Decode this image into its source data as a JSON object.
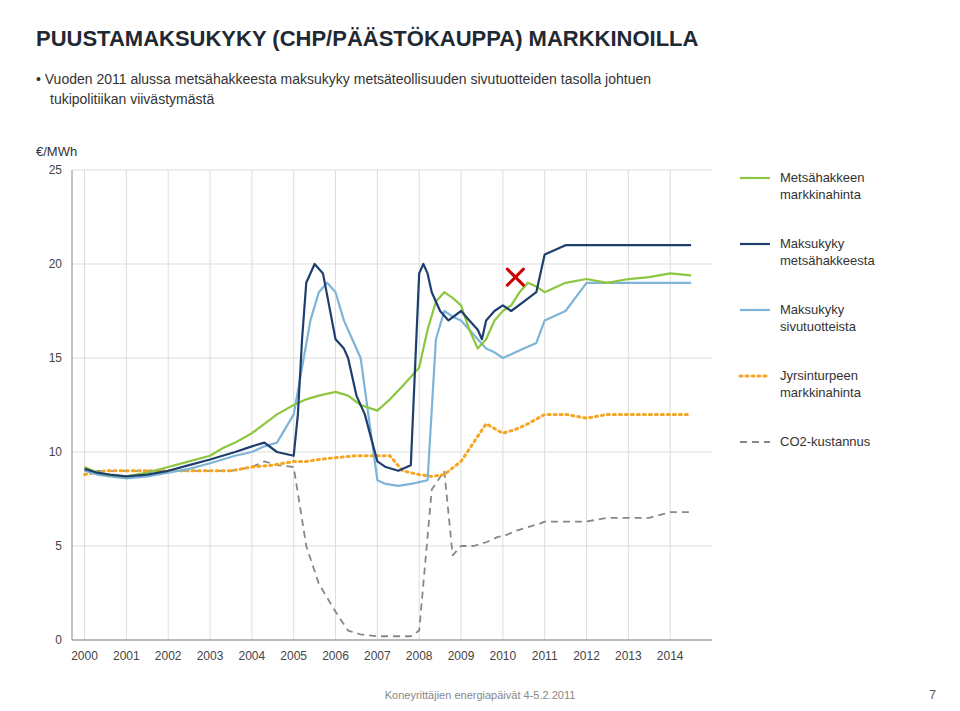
{
  "chart_data": {
    "type": "line",
    "title": "PUUSTAMAKSUKYKY (CHP/PÄÄSTÖKAUPPA) MARKKINOILLA",
    "subtitle": "• Vuoden 2011 alussa metsähakkeesta maksukyky metsäteollisuuden sivutuotteiden tasolla johtuen\ntukipolitiikan viivästymästä",
    "y_label": "€/MWh",
    "footer": "Koneyrittäjien energiapäivät 4-5.2.2011",
    "page_number": 7,
    "xlim": [
      1999.7,
      2015.0
    ],
    "xticks": [
      2000,
      2001,
      2002,
      2003,
      2004,
      2005,
      2006,
      2007,
      2008,
      2009,
      2010,
      2011,
      2012,
      2013,
      2014
    ],
    "ylim": [
      0,
      25
    ],
    "yticks": [
      0,
      5,
      10,
      15,
      20,
      25
    ],
    "grid": true,
    "legend": "right",
    "series": [
      {
        "name": "Metsähakkeen\nmarkkinahinta",
        "color": "#8dc63f",
        "line_style": "solid",
        "x": [
          2000.0,
          2000.2,
          2000.5,
          2001.0,
          2001.5,
          2002.0,
          2002.5,
          2003.0,
          2003.3,
          2003.6,
          2004.0,
          2004.3,
          2004.6,
          2005.0,
          2005.3,
          2005.6,
          2006.0,
          2006.3,
          2006.6,
          2007.0,
          2007.3,
          2007.6,
          2008.0,
          2008.2,
          2008.4,
          2008.6,
          2008.8,
          2009.0,
          2009.2,
          2009.4,
          2009.6,
          2009.8,
          2010.0,
          2010.2,
          2010.4,
          2010.6,
          2010.8,
          2011.0,
          2011.5,
          2012.0,
          2012.5,
          2013.0,
          2013.5,
          2014.0,
          2014.5
        ],
        "values": [
          9.2,
          9.0,
          8.8,
          8.7,
          8.9,
          9.2,
          9.5,
          9.8,
          10.2,
          10.5,
          11.0,
          11.5,
          12.0,
          12.5,
          12.8,
          13.0,
          13.2,
          13.0,
          12.5,
          12.2,
          12.8,
          13.5,
          14.5,
          16.5,
          18.0,
          18.5,
          18.2,
          17.8,
          16.5,
          15.5,
          16.0,
          17.0,
          17.5,
          17.8,
          18.5,
          19.0,
          18.8,
          18.5,
          19.0,
          19.2,
          19.0,
          19.2,
          19.3,
          19.5,
          19.4
        ]
      },
      {
        "name": "Maksukyky\nmetsähakkeesta",
        "color": "#1e3f6e",
        "line_style": "solid",
        "x": [
          2000.0,
          2000.3,
          2000.6,
          2001.0,
          2001.5,
          2002.0,
          2002.5,
          2003.0,
          2003.3,
          2003.6,
          2004.0,
          2004.3,
          2004.6,
          2005.0,
          2005.1,
          2005.2,
          2005.3,
          2005.5,
          2005.7,
          2006.0,
          2006.2,
          2006.3,
          2006.4,
          2006.5,
          2006.7,
          2007.0,
          2007.2,
          2007.5,
          2007.8,
          2008.0,
          2008.1,
          2008.2,
          2008.3,
          2008.5,
          2008.7,
          2009.0,
          2009.2,
          2009.4,
          2009.5,
          2009.6,
          2009.8,
          2010.0,
          2010.2,
          2010.5,
          2010.8,
          2011.0,
          2011.5,
          2012.0,
          2012.5,
          2013.0,
          2013.5,
          2014.0,
          2014.5
        ],
        "values": [
          9.1,
          8.9,
          8.8,
          8.7,
          8.8,
          9.0,
          9.3,
          9.6,
          9.8,
          10.0,
          10.3,
          10.5,
          10.0,
          9.8,
          12.0,
          16.0,
          19.0,
          20.0,
          19.5,
          16.0,
          15.5,
          15.0,
          14.0,
          13.0,
          12.0,
          9.5,
          9.2,
          9.0,
          9.3,
          19.5,
          20.0,
          19.5,
          18.5,
          17.5,
          17.0,
          17.5,
          17.0,
          16.5,
          16.0,
          17.0,
          17.5,
          17.8,
          17.5,
          18.0,
          18.5,
          20.5,
          21.0,
          21.0,
          21.0,
          21.0,
          21.0,
          21.0,
          21.0
        ]
      },
      {
        "name": "Maksukyky\nsivutuotteista",
        "color": "#7eb4d8",
        "line_style": "solid",
        "x": [
          2000.0,
          2000.3,
          2000.6,
          2001.0,
          2001.5,
          2002.0,
          2002.5,
          2003.0,
          2003.3,
          2003.6,
          2004.0,
          2004.3,
          2004.6,
          2005.0,
          2005.2,
          2005.4,
          2005.6,
          2005.8,
          2006.0,
          2006.2,
          2006.4,
          2006.6,
          2007.0,
          2007.2,
          2007.5,
          2007.8,
          2008.0,
          2008.2,
          2008.4,
          2008.6,
          2008.8,
          2009.0,
          2009.2,
          2009.4,
          2009.6,
          2009.8,
          2010.0,
          2010.2,
          2010.5,
          2010.8,
          2011.0,
          2011.5,
          2012.0,
          2012.5,
          2013.0,
          2013.5,
          2014.0,
          2014.5
        ],
        "values": [
          9.0,
          8.8,
          8.7,
          8.6,
          8.7,
          8.9,
          9.1,
          9.4,
          9.6,
          9.8,
          10.0,
          10.3,
          10.5,
          12.0,
          14.5,
          17.0,
          18.5,
          19.0,
          18.5,
          17.0,
          16.0,
          15.0,
          8.5,
          8.3,
          8.2,
          8.3,
          8.4,
          8.5,
          16.0,
          17.5,
          17.2,
          17.0,
          16.5,
          16.0,
          15.5,
          15.3,
          15.0,
          15.2,
          15.5,
          15.8,
          17.0,
          17.5,
          19.0,
          19.0,
          19.0,
          19.0,
          19.0,
          19.0
        ]
      },
      {
        "name": "Jyrsinturpeen\nmarkkinahinta",
        "color": "#f5a623",
        "line_style": "dotted",
        "x": [
          2000.0,
          2000.5,
          2001.0,
          2001.5,
          2002.0,
          2002.5,
          2003.0,
          2003.5,
          2004.0,
          2004.5,
          2005.0,
          2005.3,
          2005.6,
          2006.0,
          2006.5,
          2007.0,
          2007.3,
          2007.6,
          2008.0,
          2008.3,
          2008.6,
          2009.0,
          2009.3,
          2009.6,
          2010.0,
          2010.3,
          2010.6,
          2011.0,
          2011.5,
          2012.0,
          2012.5,
          2013.0,
          2013.5,
          2014.0,
          2014.5
        ],
        "values": [
          8.8,
          9.0,
          9.0,
          9.0,
          9.0,
          9.0,
          9.0,
          9.0,
          9.2,
          9.3,
          9.5,
          9.5,
          9.6,
          9.7,
          9.8,
          9.8,
          9.8,
          9.0,
          8.8,
          8.7,
          8.8,
          9.5,
          10.5,
          11.5,
          11.0,
          11.2,
          11.5,
          12.0,
          12.0,
          11.8,
          12.0,
          12.0,
          12.0,
          12.0,
          12.0
        ]
      },
      {
        "name": "CO2-kustannus",
        "color": "#888888",
        "line_style": "dashed",
        "x": [
          2000.0,
          2000.5,
          2001.0,
          2001.5,
          2002.0,
          2002.5,
          2003.0,
          2003.5,
          2004.0,
          2004.3,
          2004.6,
          2005.0,
          2005.3,
          2005.6,
          2006.0,
          2006.3,
          2006.6,
          2007.0,
          2007.3,
          2007.5,
          2007.6,
          2007.8,
          2008.0,
          2008.3,
          2008.6,
          2008.8,
          2009.0,
          2009.3,
          2009.6,
          2009.9,
          2010.0,
          2010.3,
          2010.6,
          2010.9,
          2011.0,
          2011.5,
          2012.0,
          2012.5,
          2013.0,
          2013.5,
          2014.0,
          2014.5
        ],
        "values": [
          9.0,
          9.0,
          9.0,
          9.0,
          9.0,
          9.0,
          9.0,
          9.0,
          9.2,
          9.5,
          9.3,
          9.2,
          5.0,
          3.0,
          1.5,
          0.5,
          0.3,
          0.2,
          0.2,
          0.2,
          0.2,
          0.2,
          0.5,
          8.0,
          9.0,
          4.5,
          5.0,
          5.0,
          5.2,
          5.5,
          5.5,
          5.8,
          6.0,
          6.2,
          6.3,
          6.3,
          6.3,
          6.5,
          6.5,
          6.5,
          6.8,
          6.8
        ]
      },
      {
        "type": "scatter",
        "marker": "x",
        "color": "#cc0000",
        "x": [
          2010.3
        ],
        "values": [
          19.3
        ]
      }
    ]
  }
}
